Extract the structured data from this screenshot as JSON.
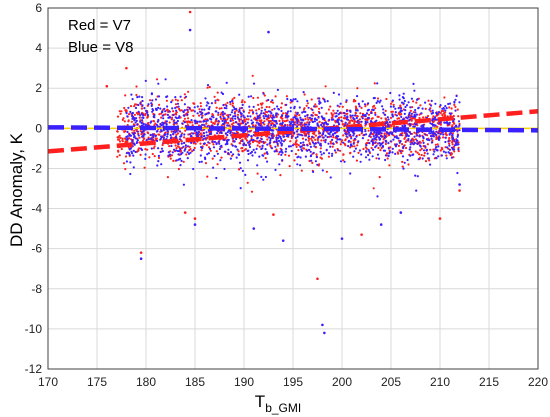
{
  "chart_data": {
    "type": "scatter",
    "xlabel": "T",
    "xlabel_subscript": "b_GMI",
    "ylabel": "DD Anomaly, K",
    "xlim": [
      170,
      220
    ],
    "ylim": [
      -12,
      6
    ],
    "xticks": [
      170,
      175,
      180,
      185,
      190,
      195,
      200,
      205,
      210,
      215,
      220
    ],
    "yticks": [
      -12,
      -10,
      -8,
      -6,
      -4,
      -2,
      0,
      2,
      4,
      6
    ],
    "grid": true,
    "legend_text": [
      "Red = V7",
      "Blue = V8"
    ],
    "legend_placement": "top-left",
    "series": [
      {
        "color": "#ff1f1f",
        "point_cloud": {
          "x_range": [
            177,
            212
          ],
          "core_y_range": [
            -1.5,
            1.5
          ],
          "outliers": [
            [
              184.5,
              5.8
            ],
            [
              178,
              3
            ],
            [
              176,
              2.1
            ],
            [
              179.5,
              -6.2
            ],
            [
              184,
              -4.2
            ],
            [
              193,
              -4.3
            ],
            [
              197.5,
              -7.5
            ],
            [
              202,
              -5.3
            ],
            [
              210,
              -4.5
            ],
            [
              212,
              -3.1
            ],
            [
              185,
              -4.5
            ]
          ]
        },
        "fit_line": {
          "x": [
            170,
            220
          ],
          "y": [
            -1.15,
            0.85
          ],
          "style": "dashed"
        }
      },
      {
        "color": "#3a1fff",
        "point_cloud": {
          "x_range": [
            178,
            212
          ],
          "core_y_range": [
            -1.8,
            1.6
          ],
          "outliers": [
            [
              184.5,
              4.9
            ],
            [
              192.5,
              4.8
            ],
            [
              179.5,
              -6.5
            ],
            [
              185,
              -4.8
            ],
            [
              198,
              -9.8
            ],
            [
              198.2,
              -10.2
            ],
            [
              200,
              -5.5
            ],
            [
              191,
              -5
            ],
            [
              204,
              -4.8
            ],
            [
              206,
              -4.2
            ],
            [
              194,
              -5.6
            ],
            [
              212,
              -2.8
            ]
          ]
        },
        "fit_line": {
          "x": [
            170,
            220
          ],
          "y": [
            0.05,
            -0.1
          ],
          "style": "dashed"
        }
      }
    ],
    "reference_line": {
      "y": 0,
      "color": "#ffd000"
    }
  }
}
